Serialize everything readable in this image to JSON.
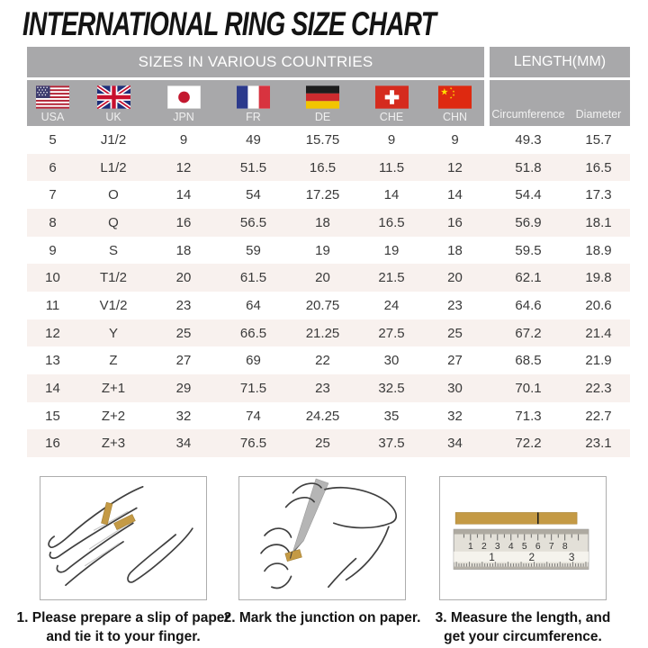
{
  "title": "INTERNATIONAL RING SIZE CHART",
  "table": {
    "group_headers": {
      "countries": "SIZES IN VARIOUS COUNTRIES",
      "length": "LENGTH(MM)"
    },
    "country_columns": [
      "USA",
      "UK",
      "JPN",
      "FR",
      "DE",
      "CHE",
      "CHN"
    ],
    "length_columns": [
      "Circumference",
      "Diameter"
    ],
    "rows": [
      [
        "5",
        "J1/2",
        "9",
        "49",
        "15.75",
        "9",
        "9",
        "49.3",
        "15.7"
      ],
      [
        "6",
        "L1/2",
        "12",
        "51.5",
        "16.5",
        "11.5",
        "12",
        "51.8",
        "16.5"
      ],
      [
        "7",
        "O",
        "14",
        "54",
        "17.25",
        "14",
        "14",
        "54.4",
        "17.3"
      ],
      [
        "8",
        "Q",
        "16",
        "56.5",
        "18",
        "16.5",
        "16",
        "56.9",
        "18.1"
      ],
      [
        "9",
        "S",
        "18",
        "59",
        "19",
        "19",
        "18",
        "59.5",
        "18.9"
      ],
      [
        "10",
        "T1/2",
        "20",
        "61.5",
        "20",
        "21.5",
        "20",
        "62.1",
        "19.8"
      ],
      [
        "11",
        "V1/2",
        "23",
        "64",
        "20.75",
        "24",
        "23",
        "64.6",
        "20.6"
      ],
      [
        "12",
        "Y",
        "25",
        "66.5",
        "21.25",
        "27.5",
        "25",
        "67.2",
        "21.4"
      ],
      [
        "13",
        "Z",
        "27",
        "69",
        "22",
        "30",
        "27",
        "68.5",
        "21.9"
      ],
      [
        "14",
        "Z+1",
        "29",
        "71.5",
        "23",
        "32.5",
        "30",
        "70.1",
        "22.3"
      ],
      [
        "15",
        "Z+2",
        "32",
        "74",
        "24.25",
        "35",
        "32",
        "71.3",
        "22.7"
      ],
      [
        "16",
        "Z+3",
        "34",
        "76.5",
        "25",
        "37.5",
        "34",
        "72.2",
        "23.1"
      ]
    ]
  },
  "steps": [
    {
      "lines": [
        "1. Please prepare a slip of paper",
        "and tie it to your finger."
      ]
    },
    {
      "lines": [
        "2. Mark the junction on paper."
      ]
    },
    {
      "lines": [
        "3. Measure the length, and",
        "get your circumference."
      ]
    }
  ],
  "illustrations": {
    "ruler": {
      "cm_numbers": [
        "1",
        "2",
        "3",
        "4",
        "5",
        "6",
        "7",
        "8"
      ],
      "inch_numbers": [
        "1",
        "2",
        "3"
      ]
    },
    "flag_icons": [
      "usa-flag-icon",
      "uk-flag-icon",
      "jpn-flag-icon",
      "fr-flag-icon",
      "de-flag-icon",
      "che-flag-icon",
      "chn-flag-icon"
    ]
  },
  "colors": {
    "header_bg": "#a8a8aa",
    "header_text": "#ffffff",
    "row_alt_bg": "#f8f1ee",
    "data_text": "#3a3a3a",
    "paper_gold": "#c49a45",
    "title_text": "#141414"
  }
}
